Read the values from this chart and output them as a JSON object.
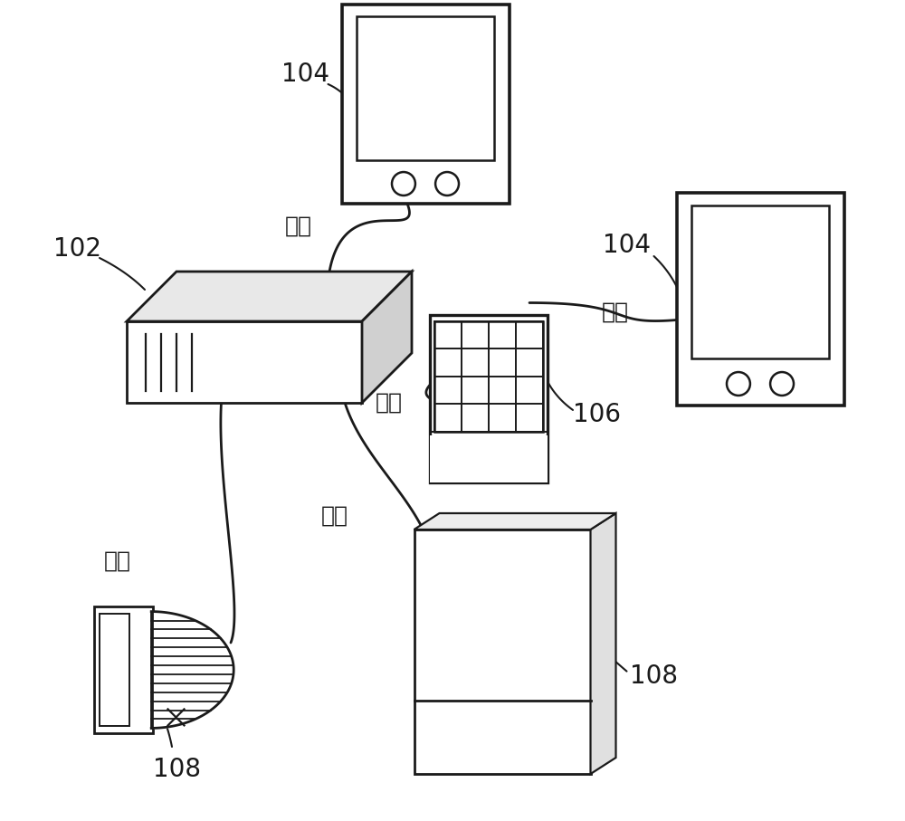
{
  "bg_color": "#ffffff",
  "label_102": "102",
  "label_104": "104",
  "label_106": "106",
  "label_108": "108",
  "label_network": "网络",
  "font_size_label": 16,
  "font_size_number": 18,
  "line_color": "#1a1a1a",
  "lw_main": 2.0,
  "lw_thin": 1.2
}
